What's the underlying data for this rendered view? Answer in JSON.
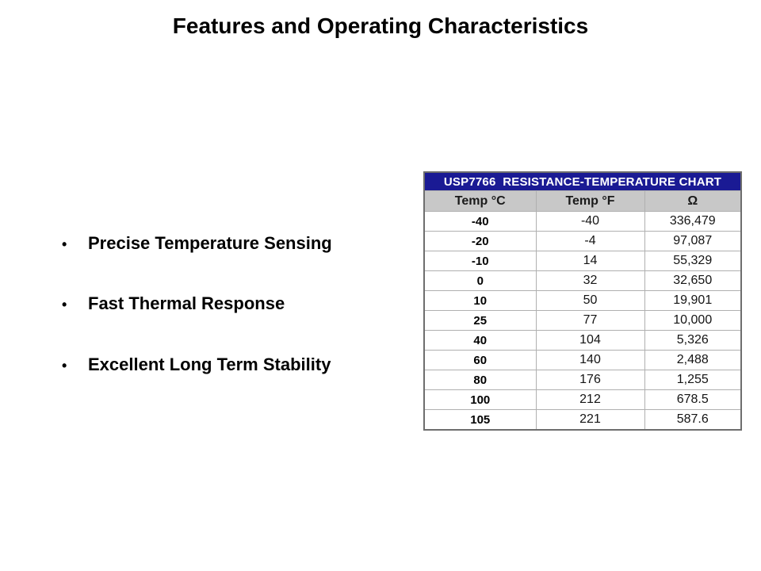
{
  "slide": {
    "title": "Features and Operating Characteristics",
    "bullets": [
      "Precise Temperature Sensing",
      "Fast Thermal Response",
      "Excellent Long Term Stability"
    ],
    "bullet_glyph": "•"
  },
  "chart_data": {
    "type": "table",
    "title": "USP7766  RESISTANCE-TEMPERATURE CHART",
    "columns": [
      "Temp °C",
      "Temp °F",
      "Ω"
    ],
    "rows": [
      [
        "-40",
        "-40",
        "336,479"
      ],
      [
        "-20",
        "-4",
        "97,087"
      ],
      [
        "-10",
        "14",
        "55,329"
      ],
      [
        "0",
        "32",
        "32,650"
      ],
      [
        "10",
        "50",
        "19,901"
      ],
      [
        "25",
        "77",
        "10,000"
      ],
      [
        "40",
        "104",
        "5,326"
      ],
      [
        "60",
        "140",
        "2,488"
      ],
      [
        "80",
        "176",
        "1,255"
      ],
      [
        "100",
        "212",
        "678.5"
      ],
      [
        "105",
        "221",
        "587.6"
      ]
    ],
    "colors": {
      "title_bg": "#1a1a94",
      "title_text": "#ffffff",
      "header_bg": "#c8c8c8",
      "grid": "#b0b0b0",
      "outer_border": "#6e6e6e"
    }
  }
}
